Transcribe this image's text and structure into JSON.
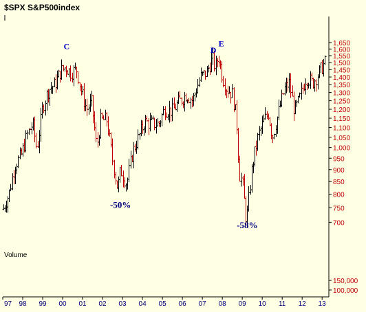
{
  "chart_data": {
    "type": "ohlc-bar",
    "title": "$SPX S&P500index",
    "volume_label": "Volume",
    "y_scale": "log",
    "ylim": [
      650,
      1750
    ],
    "y_ticks": [
      1650,
      1600,
      1550,
      1500,
      1450,
      1400,
      1350,
      1300,
      1250,
      1200,
      1150,
      1100,
      1050,
      1000,
      950,
      900,
      850,
      800,
      750,
      700
    ],
    "y_tick_labels": [
      "1,650",
      "1,600",
      "1,550",
      "1,500",
      "1,450",
      "1,400",
      "1,350",
      "1,300",
      "1,250",
      "1,200",
      "1,150",
      "1,100",
      "1,050",
      "1,000",
      "950",
      "900",
      "850",
      "800",
      "750",
      "700"
    ],
    "volume_ticks": [
      150000,
      100000
    ],
    "volume_tick_labels": [
      "150,000",
      "100,000"
    ],
    "x_ticks": [
      "97",
      "98",
      "99",
      "00",
      "01",
      "02",
      "03",
      "04",
      "05",
      "06",
      "07",
      "08",
      "09",
      "10",
      "11",
      "12",
      "13"
    ],
    "xlim": [
      1997.0,
      2013.2
    ],
    "series": [
      {
        "values": [
          [
            1997.0,
            745
          ],
          [
            1997.3,
            800
          ],
          [
            1997.6,
            920
          ],
          [
            1997.9,
            960
          ],
          [
            1998.2,
            1060
          ],
          [
            1998.5,
            1120
          ],
          [
            1998.7,
            990
          ],
          [
            1999.0,
            1220
          ],
          [
            1999.3,
            1320
          ],
          [
            1999.6,
            1350
          ],
          [
            1999.9,
            1440
          ],
          [
            2000.15,
            1470
          ],
          [
            2000.4,
            1430
          ],
          [
            2000.7,
            1450
          ],
          [
            2000.9,
            1320
          ],
          [
            2001.2,
            1200
          ],
          [
            2001.45,
            1240
          ],
          [
            2001.7,
            1000
          ],
          [
            2001.9,
            1140
          ],
          [
            2002.2,
            1140
          ],
          [
            2002.5,
            940
          ],
          [
            2002.75,
            820
          ],
          [
            2002.9,
            900
          ],
          [
            2003.2,
            840
          ],
          [
            2003.5,
            980
          ],
          [
            2003.8,
            1050
          ],
          [
            2004.1,
            1130
          ],
          [
            2004.5,
            1120
          ],
          [
            2004.8,
            1120
          ],
          [
            2005.1,
            1200
          ],
          [
            2005.5,
            1190
          ],
          [
            2005.8,
            1240
          ],
          [
            2006.2,
            1290
          ],
          [
            2006.5,
            1250
          ],
          [
            2006.9,
            1400
          ],
          [
            2007.2,
            1430
          ],
          [
            2007.5,
            1530
          ],
          [
            2007.65,
            1460
          ],
          [
            2007.8,
            1550
          ],
          [
            2008.0,
            1400
          ],
          [
            2008.2,
            1330
          ],
          [
            2008.5,
            1290
          ],
          [
            2008.7,
            1150
          ],
          [
            2008.85,
            880
          ],
          [
            2009.0,
            850
          ],
          [
            2009.2,
            700
          ],
          [
            2009.5,
            920
          ],
          [
            2009.8,
            1060
          ],
          [
            2010.1,
            1140
          ],
          [
            2010.3,
            1180
          ],
          [
            2010.5,
            1050
          ],
          [
            2010.8,
            1180
          ],
          [
            2011.1,
            1320
          ],
          [
            2011.35,
            1360
          ],
          [
            2011.6,
            1190
          ],
          [
            2011.8,
            1240
          ],
          [
            2012.2,
            1400
          ],
          [
            2012.5,
            1360
          ],
          [
            2012.8,
            1420
          ],
          [
            2013.0,
            1470
          ],
          [
            2013.15,
            1500
          ]
        ]
      }
    ],
    "annotations": [
      {
        "text": "C",
        "x": 2000.2,
        "y": 1600
      },
      {
        "text": "D",
        "x": 2007.55,
        "y": 1570
      },
      {
        "text": "E",
        "x": 2007.95,
        "y": 1620
      },
      {
        "text": "-50%",
        "x": 2002.9,
        "y": 750
      },
      {
        "text": "-58%",
        "x": 2009.25,
        "y": 680
      }
    ],
    "grid": false
  },
  "colors": {
    "background": "#ffffe4",
    "up_bar": "#000000",
    "down_bar": "#c00000",
    "axis": "#000000",
    "price_labels": "#c00000",
    "x_labels": "#000080",
    "annotation": "#0000cc",
    "percent_annotation": "#000080"
  }
}
